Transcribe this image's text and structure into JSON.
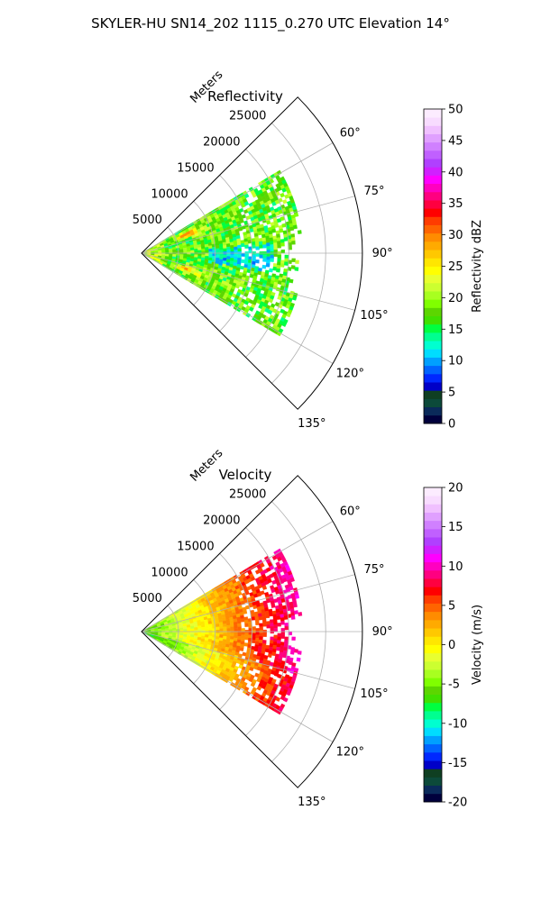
{
  "figure": {
    "suptitle": "SKYLER-HU  SN14_202  1115_0.270 UTC Elevation 14°"
  },
  "chart_data": [
    {
      "type": "heatmap",
      "projection": "polar-sector",
      "title": "Reflectivity",
      "radial_axis_label": "Meters",
      "radial_ticks": [
        "5000",
        "10000",
        "15000",
        "20000",
        "25000"
      ],
      "radial_tick_values": [
        5000,
        10000,
        15000,
        20000,
        25000
      ],
      "radial_range": [
        0,
        30000
      ],
      "azimuth_range_deg": [
        45,
        135
      ],
      "azimuth_ticks": [
        "60°",
        "75°",
        "90°",
        "105°",
        "120°",
        "135°"
      ],
      "azimuth_tick_values": [
        60,
        75,
        90,
        105,
        120,
        135
      ],
      "grid": true,
      "colorbar": {
        "label": "Reflectivity dBZ",
        "range": [
          0,
          50
        ],
        "ticks": [
          "0",
          "5",
          "10",
          "15",
          "20",
          "25",
          "30",
          "35",
          "40",
          "45",
          "50"
        ],
        "tick_values": [
          0,
          5,
          10,
          15,
          20,
          25,
          30,
          35,
          40,
          45,
          50
        ]
      },
      "observed_range_m": [
        0,
        21000
      ],
      "observed_azimuth_deg": [
        60,
        120
      ],
      "typical_value_range": [
        10,
        25
      ],
      "max_value_approx": 35
    },
    {
      "type": "heatmap",
      "projection": "polar-sector",
      "title": "Velocity",
      "radial_axis_label": "Meters",
      "radial_ticks": [
        "5000",
        "10000",
        "15000",
        "20000",
        "25000"
      ],
      "radial_tick_values": [
        5000,
        10000,
        15000,
        20000,
        25000
      ],
      "radial_range": [
        0,
        30000
      ],
      "azimuth_range_deg": [
        45,
        135
      ],
      "azimuth_ticks": [
        "60°",
        "75°",
        "90°",
        "105°",
        "120°",
        "135°"
      ],
      "azimuth_tick_values": [
        60,
        75,
        90,
        105,
        120,
        135
      ],
      "grid": true,
      "colorbar": {
        "label": "Velocity (m/s)",
        "range": [
          -20,
          20
        ],
        "ticks": [
          "-20",
          "-15",
          "-10",
          "-5",
          "0",
          "5",
          "10",
          "15",
          "20"
        ],
        "tick_values": [
          -20,
          -15,
          -10,
          -5,
          0,
          5,
          10,
          15,
          20
        ]
      },
      "observed_range_m": [
        0,
        21000
      ],
      "observed_azimuth_deg": [
        60,
        120
      ],
      "typical_value_range": [
        -8,
        12
      ],
      "max_value_approx": 12
    }
  ],
  "colormaps": {
    "reflectivity": [
      "#00003c",
      "#0a2a5a",
      "#0c4a3a",
      "#0f3f22",
      "#0000c8",
      "#0028ff",
      "#0064ff",
      "#00a0ff",
      "#00ddff",
      "#00ffd0",
      "#00ff90",
      "#00ff40",
      "#40e000",
      "#5cd600",
      "#80ff00",
      "#a8ff20",
      "#ccff30",
      "#e8ff30",
      "#ffff00",
      "#ffe600",
      "#ffc800",
      "#ffaa00",
      "#ff8c00",
      "#ff6400",
      "#ff3c00",
      "#ff0000",
      "#ff0040",
      "#ff0080",
      "#ff00c0",
      "#ff00ff",
      "#d020ff",
      "#b040ff",
      "#c060ff",
      "#d080ff",
      "#e0a0ff",
      "#f0c0ff",
      "#f8dcff",
      "#fcecff"
    ],
    "velocity": [
      "#00003c",
      "#0a2a5a",
      "#0c4a3a",
      "#0f3f22",
      "#0000c8",
      "#0028ff",
      "#0064ff",
      "#00a0ff",
      "#00ddff",
      "#00ffd0",
      "#00ff90",
      "#00ff40",
      "#40e000",
      "#5cd600",
      "#80ff00",
      "#a8ff20",
      "#ccff30",
      "#e8ff30",
      "#ffff00",
      "#ffe600",
      "#ffc800",
      "#ffaa00",
      "#ff8c00",
      "#ff6400",
      "#ff3c00",
      "#ff0000",
      "#ff0040",
      "#ff0080",
      "#ff00c0",
      "#ff00ff",
      "#d020ff",
      "#b040ff",
      "#c060ff",
      "#d080ff",
      "#e0a0ff",
      "#f0c0ff",
      "#f8dcff",
      "#fcecff"
    ]
  }
}
